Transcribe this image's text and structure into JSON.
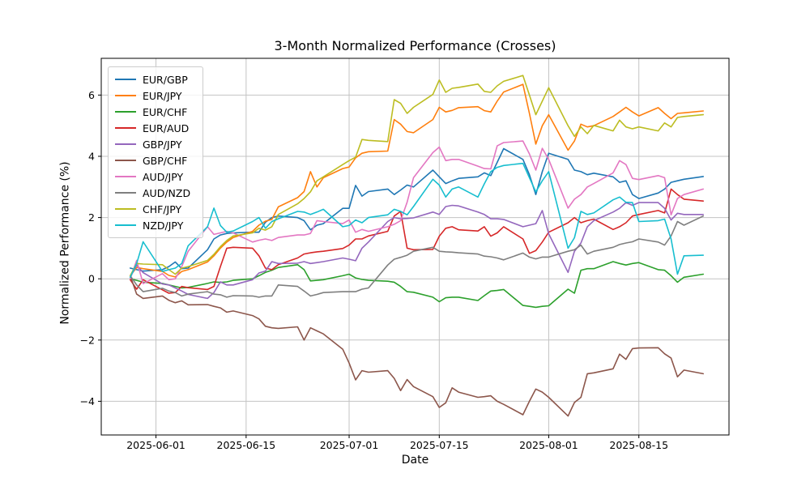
{
  "chart_data": {
    "type": "line",
    "title": "3-Month Normalized Performance (Crosses)",
    "xlabel": "Date",
    "ylabel": "Normalized Performance (%)",
    "legend_position": "upper left",
    "grid": true,
    "xlim_days_from_2025_06_01": [
      -8.5,
      89
    ],
    "ylim": [
      -5.1,
      7.2
    ],
    "x_ticks": [
      {
        "date": "2025-06-01",
        "label": "2025-06-01"
      },
      {
        "date": "2025-06-15",
        "label": "2025-06-15"
      },
      {
        "date": "2025-07-01",
        "label": "2025-07-01"
      },
      {
        "date": "2025-07-15",
        "label": "2025-07-15"
      },
      {
        "date": "2025-08-01",
        "label": "2025-08-01"
      },
      {
        "date": "2025-08-15",
        "label": "2025-08-15"
      }
    ],
    "y_ticks": [
      {
        "value": -4,
        "label": "−4"
      },
      {
        "value": -2,
        "label": "−2"
      },
      {
        "value": 0,
        "label": "0"
      },
      {
        "value": 2,
        "label": "2"
      },
      {
        "value": 4,
        "label": "4"
      },
      {
        "value": 6,
        "label": "6"
      }
    ],
    "dates": [
      "2025-05-28",
      "2025-05-29",
      "2025-05-30",
      "2025-06-02",
      "2025-06-03",
      "2025-06-04",
      "2025-06-05",
      "2025-06-06",
      "2025-06-09",
      "2025-06-10",
      "2025-06-11",
      "2025-06-12",
      "2025-06-13",
      "2025-06-16",
      "2025-06-17",
      "2025-06-18",
      "2025-06-19",
      "2025-06-20",
      "2025-06-23",
      "2025-06-24",
      "2025-06-25",
      "2025-06-26",
      "2025-06-27",
      "2025-06-30",
      "2025-07-01",
      "2025-07-02",
      "2025-07-03",
      "2025-07-04",
      "2025-07-07",
      "2025-07-08",
      "2025-07-09",
      "2025-07-10",
      "2025-07-11",
      "2025-07-14",
      "2025-07-15",
      "2025-07-16",
      "2025-07-17",
      "2025-07-18",
      "2025-07-21",
      "2025-07-22",
      "2025-07-23",
      "2025-07-24",
      "2025-07-25",
      "2025-07-28",
      "2025-07-29",
      "2025-07-30",
      "2025-07-31",
      "2025-08-01",
      "2025-08-04",
      "2025-08-05",
      "2025-08-06",
      "2025-08-07",
      "2025-08-08",
      "2025-08-11",
      "2025-08-12",
      "2025-08-13",
      "2025-08-14",
      "2025-08-15",
      "2025-08-18",
      "2025-08-19",
      "2025-08-20",
      "2025-08-21",
      "2025-08-22",
      "2025-08-25"
    ],
    "series": [
      {
        "name": "EUR/GBP",
        "color": "#1f77b4",
        "values": [
          0.35,
          0.3,
          0.25,
          0.3,
          0.4,
          0.55,
          0.33,
          0.35,
          0.95,
          1.3,
          1.43,
          1.48,
          1.5,
          1.52,
          1.52,
          1.85,
          2.0,
          2.05,
          2.0,
          1.9,
          1.6,
          1.75,
          1.8,
          2.3,
          2.3,
          3.05,
          2.7,
          2.85,
          2.93,
          2.75,
          2.9,
          3.06,
          3.0,
          3.55,
          3.33,
          3.11,
          3.2,
          3.28,
          3.33,
          3.46,
          3.37,
          3.8,
          4.25,
          3.9,
          3.4,
          2.75,
          3.5,
          4.1,
          3.9,
          3.55,
          3.5,
          3.4,
          3.45,
          3.33,
          3.15,
          3.2,
          2.75,
          2.62,
          2.8,
          2.93,
          3.15,
          3.2,
          3.25,
          3.34
        ]
      },
      {
        "name": "EUR/JPY",
        "color": "#ff7f0e",
        "values": [
          0.1,
          0.37,
          0.33,
          0.24,
          0.11,
          0.06,
          0.24,
          0.3,
          0.55,
          0.75,
          1.0,
          1.2,
          1.35,
          1.55,
          1.75,
          1.88,
          1.94,
          2.35,
          2.65,
          2.85,
          3.5,
          3.0,
          3.3,
          3.6,
          3.65,
          3.95,
          4.1,
          4.15,
          4.17,
          5.2,
          5.05,
          4.81,
          4.77,
          5.2,
          5.6,
          5.45,
          5.5,
          5.59,
          5.62,
          5.49,
          5.45,
          5.8,
          6.1,
          6.35,
          5.4,
          4.4,
          5.0,
          5.36,
          4.2,
          4.5,
          5.05,
          4.96,
          5.0,
          5.3,
          5.45,
          5.6,
          5.45,
          5.32,
          5.59,
          5.4,
          5.23,
          5.4,
          5.42,
          5.48
        ]
      },
      {
        "name": "EUR/CHF",
        "color": "#2ca02c",
        "values": [
          0.0,
          -0.05,
          -0.11,
          -0.15,
          -0.2,
          -0.25,
          -0.3,
          -0.28,
          -0.15,
          -0.1,
          -0.12,
          -0.1,
          -0.05,
          0.0,
          0.1,
          0.21,
          0.28,
          0.37,
          0.46,
          0.3,
          -0.07,
          -0.05,
          -0.03,
          0.1,
          0.15,
          0.03,
          -0.02,
          -0.05,
          -0.08,
          -0.11,
          -0.25,
          -0.42,
          -0.44,
          -0.6,
          -0.75,
          -0.62,
          -0.6,
          -0.6,
          -0.71,
          -0.55,
          -0.4,
          -0.38,
          -0.35,
          -0.87,
          -0.9,
          -0.93,
          -0.9,
          -0.88,
          -0.34,
          -0.47,
          0.28,
          0.33,
          0.33,
          0.56,
          0.5,
          0.45,
          0.5,
          0.53,
          0.3,
          0.28,
          0.1,
          -0.11,
          0.05,
          0.15
        ]
      },
      {
        "name": "EUR/AUD",
        "color": "#d62728",
        "values": [
          -0.03,
          -0.34,
          -0.03,
          -0.36,
          -0.47,
          -0.45,
          -0.25,
          -0.29,
          -0.35,
          -0.25,
          0.4,
          1.0,
          1.03,
          1.0,
          0.75,
          0.35,
          0.3,
          0.46,
          0.68,
          0.81,
          0.85,
          0.88,
          0.9,
          0.99,
          1.1,
          1.3,
          1.3,
          1.4,
          1.55,
          2.05,
          2.2,
          1.0,
          0.95,
          0.96,
          1.39,
          1.65,
          1.7,
          1.6,
          1.56,
          1.7,
          1.39,
          1.5,
          1.7,
          1.3,
          0.83,
          0.92,
          1.2,
          1.52,
          1.83,
          2.0,
          1.83,
          1.9,
          1.95,
          1.61,
          1.7,
          1.83,
          2.05,
          2.1,
          2.23,
          2.15,
          2.93,
          2.75,
          2.6,
          2.54
        ]
      },
      {
        "name": "GBP/JPY",
        "color": "#9467bd",
        "values": [
          0.05,
          0.45,
          0.2,
          -0.17,
          -0.2,
          -0.3,
          -0.4,
          -0.51,
          -0.64,
          -0.45,
          -0.1,
          -0.2,
          -0.2,
          -0.03,
          0.19,
          0.25,
          0.56,
          0.5,
          0.51,
          0.56,
          0.5,
          0.53,
          0.56,
          0.68,
          0.64,
          0.59,
          1.0,
          1.2,
          1.87,
          2.0,
          1.96,
          1.97,
          1.99,
          2.18,
          2.1,
          2.36,
          2.4,
          2.38,
          2.18,
          2.1,
          1.96,
          1.96,
          1.94,
          1.7,
          1.75,
          1.8,
          2.23,
          1.47,
          0.21,
          0.9,
          1.17,
          1.7,
          1.9,
          2.18,
          2.3,
          2.49,
          2.4,
          2.49,
          2.49,
          2.3,
          1.92,
          2.14,
          2.1,
          2.1
        ]
      },
      {
        "name": "GBP/CHF",
        "color": "#8c564b",
        "values": [
          0.1,
          -0.5,
          -0.64,
          -0.56,
          -0.7,
          -0.78,
          -0.72,
          -0.85,
          -0.84,
          -0.9,
          -0.95,
          -1.09,
          -1.05,
          -1.2,
          -1.31,
          -1.55,
          -1.6,
          -1.62,
          -1.57,
          -2.0,
          -1.6,
          -1.7,
          -1.8,
          -2.3,
          -2.75,
          -3.3,
          -3.0,
          -3.05,
          -3.0,
          -3.25,
          -3.65,
          -3.29,
          -3.52,
          -3.85,
          -4.2,
          -4.05,
          -3.56,
          -3.7,
          -3.87,
          -3.85,
          -3.82,
          -4.0,
          -4.1,
          -4.44,
          -4.0,
          -3.6,
          -3.7,
          -3.87,
          -4.48,
          -4.04,
          -3.87,
          -3.1,
          -3.07,
          -2.94,
          -2.46,
          -2.63,
          -2.28,
          -2.26,
          -2.25,
          -2.45,
          -2.59,
          -3.2,
          -2.98,
          -3.1
        ]
      },
      {
        "name": "AUD/JPY",
        "color": "#e377c2",
        "values": [
          0.0,
          0.6,
          -0.16,
          0.17,
          -0.03,
          0.0,
          0.4,
          0.9,
          1.7,
          1.45,
          1.5,
          1.55,
          1.5,
          1.2,
          1.26,
          1.3,
          1.25,
          1.35,
          1.43,
          1.43,
          1.48,
          1.9,
          1.87,
          1.8,
          1.92,
          1.52,
          1.61,
          1.55,
          1.7,
          1.78,
          1.9,
          2.5,
          3.3,
          4.12,
          4.3,
          3.86,
          3.9,
          3.9,
          3.68,
          3.6,
          3.59,
          4.34,
          4.45,
          4.5,
          4.08,
          3.55,
          4.26,
          3.9,
          2.31,
          2.6,
          2.75,
          3.0,
          3.11,
          3.46,
          3.86,
          3.73,
          3.28,
          3.24,
          3.37,
          3.3,
          2.09,
          2.62,
          2.75,
          2.93
        ]
      },
      {
        "name": "AUD/NZD",
        "color": "#7f7f7f",
        "values": [
          0.1,
          -0.2,
          -0.42,
          -0.31,
          -0.4,
          -0.45,
          -0.56,
          -0.5,
          -0.42,
          -0.5,
          -0.52,
          -0.6,
          -0.55,
          -0.56,
          -0.6,
          -0.56,
          -0.56,
          -0.2,
          -0.25,
          -0.4,
          -0.56,
          -0.51,
          -0.45,
          -0.42,
          -0.42,
          -0.42,
          -0.34,
          -0.3,
          0.45,
          0.64,
          0.7,
          0.77,
          0.9,
          1.03,
          0.9,
          0.88,
          0.87,
          0.85,
          0.81,
          0.74,
          0.72,
          0.68,
          0.62,
          0.84,
          0.71,
          0.65,
          0.71,
          0.71,
          0.9,
          0.95,
          1.1,
          0.81,
          0.9,
          1.03,
          1.12,
          1.17,
          1.21,
          1.3,
          1.2,
          1.1,
          1.4,
          1.87,
          1.75,
          2.05
        ]
      },
      {
        "name": "CHF/JPY",
        "color": "#bcbd22",
        "values": [
          0.1,
          0.5,
          0.48,
          0.46,
          0.3,
          0.15,
          0.35,
          0.4,
          0.6,
          0.8,
          1.05,
          1.25,
          1.4,
          1.5,
          1.65,
          1.59,
          1.7,
          2.1,
          2.45,
          2.62,
          2.84,
          3.2,
          3.33,
          3.73,
          3.86,
          3.97,
          4.55,
          4.52,
          4.48,
          5.85,
          5.73,
          5.4,
          5.6,
          6.02,
          6.49,
          6.09,
          6.22,
          6.25,
          6.36,
          6.12,
          6.09,
          6.3,
          6.45,
          6.64,
          6.0,
          5.36,
          5.8,
          6.24,
          5.0,
          4.65,
          4.96,
          4.74,
          5.01,
          4.83,
          5.18,
          4.96,
          4.9,
          4.96,
          4.83,
          5.09,
          4.96,
          5.27,
          5.3,
          5.36
        ]
      },
      {
        "name": "NZD/JPY",
        "color": "#17becf",
        "values": [
          0.05,
          0.5,
          1.21,
          0.24,
          0.3,
          0.35,
          0.5,
          1.08,
          1.7,
          2.31,
          1.74,
          1.52,
          1.56,
          1.87,
          2.0,
          1.65,
          1.87,
          1.96,
          2.2,
          2.18,
          2.1,
          2.18,
          2.27,
          1.7,
          1.74,
          1.92,
          1.83,
          2.0,
          2.09,
          2.27,
          2.2,
          2.09,
          2.36,
          3.25,
          3.06,
          2.67,
          2.93,
          3.0,
          2.67,
          3.1,
          3.5,
          3.64,
          3.7,
          3.77,
          3.3,
          2.84,
          3.2,
          3.5,
          1.0,
          1.34,
          2.2,
          2.1,
          2.15,
          2.58,
          2.67,
          2.5,
          2.49,
          1.87,
          1.9,
          1.95,
          1.3,
          0.15,
          0.75,
          0.77
        ]
      }
    ]
  }
}
